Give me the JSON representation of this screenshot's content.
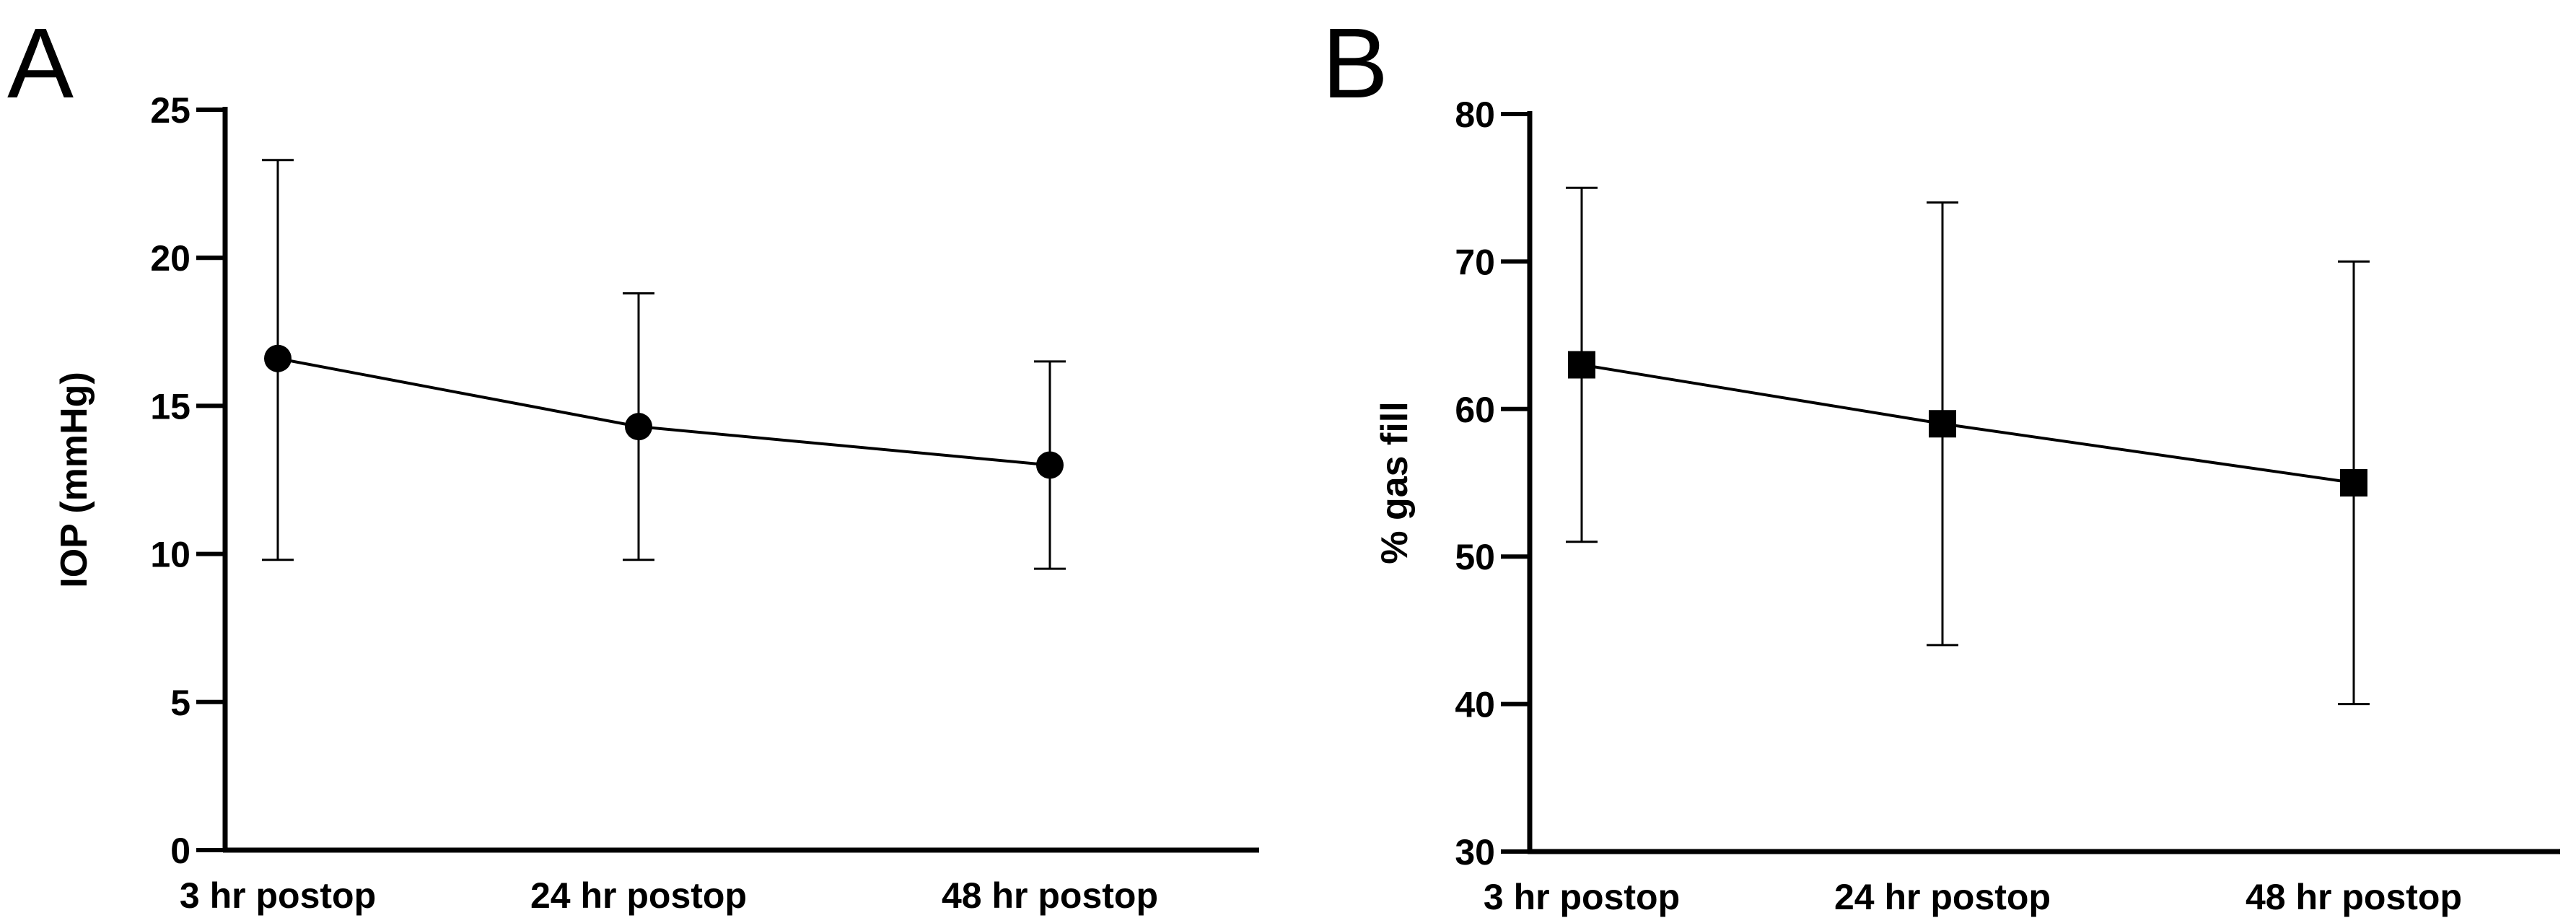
{
  "chart_data": [
    {
      "panel": "A",
      "type": "line",
      "categories": [
        "3 hr postop",
        "24 hr postop",
        "48 hr postop"
      ],
      "series": [
        {
          "marker": "circle",
          "values": [
            16.6,
            14.3,
            13.0
          ],
          "error_upper": [
            23.3,
            18.8,
            16.5
          ],
          "error_lower": [
            9.8,
            9.8,
            9.5
          ]
        }
      ],
      "ylabel": "IOP  (mmHg)",
      "xlabel": "",
      "ylim": [
        0,
        25
      ],
      "yticks": [
        0,
        5,
        10,
        15,
        20,
        25
      ],
      "grid": false
    },
    {
      "panel": "B",
      "type": "line",
      "categories": [
        "3 hr postop",
        "24 hr postop",
        "48 hr postop"
      ],
      "series": [
        {
          "marker": "square",
          "values": [
            63,
            59,
            55
          ],
          "error_upper": [
            75,
            74,
            70
          ],
          "error_lower": [
            51,
            44,
            40
          ]
        }
      ],
      "ylabel": "% gas fill",
      "xlabel": "",
      "ylim": [
        30,
        80
      ],
      "yticks": [
        30,
        40,
        50,
        60,
        70,
        80
      ],
      "grid": false
    }
  ],
  "colors": {
    "ink": "#000000",
    "background": "#ffffff"
  }
}
